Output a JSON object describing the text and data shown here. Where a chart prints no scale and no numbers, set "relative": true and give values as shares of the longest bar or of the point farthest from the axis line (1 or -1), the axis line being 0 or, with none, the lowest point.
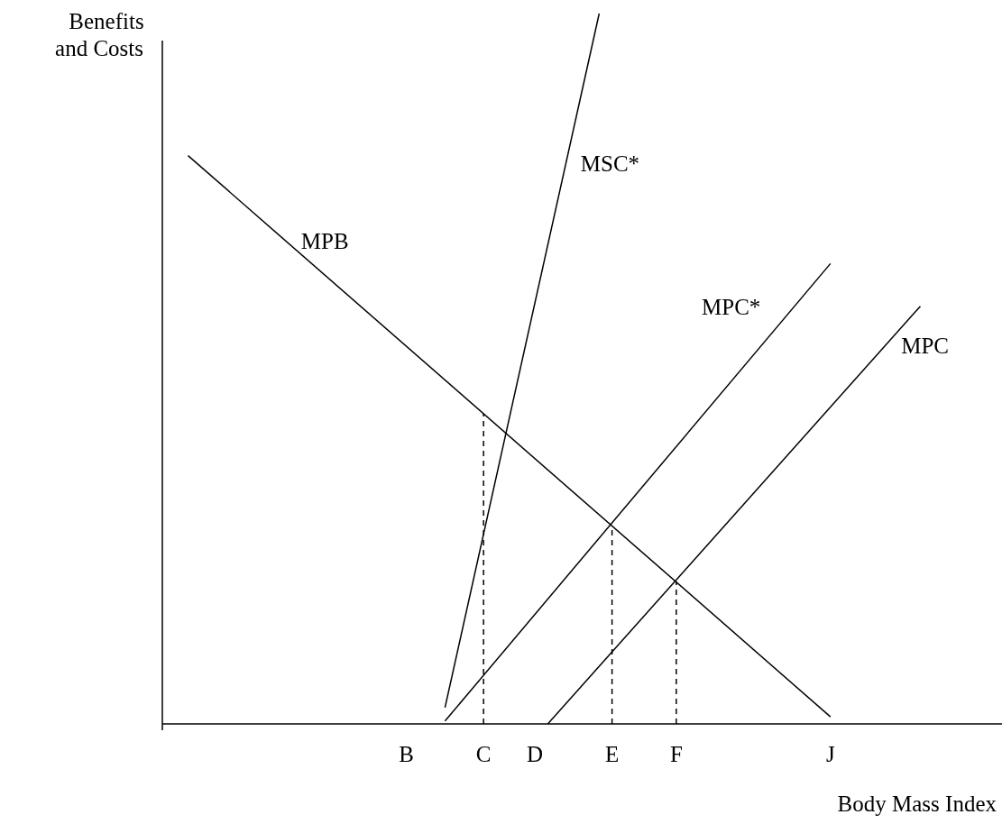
{
  "chart_data": {
    "type": "line",
    "relative": true,
    "xlabel": "Body Mass Index",
    "ylabel": "Benefits and Costs",
    "marker": "none",
    "categories": [
      null,
      null,
      null,
      null,
      null,
      null,
      null,
      null,
      null,
      null,
      null,
      null,
      null,
      null,
      null,
      null,
      null,
      null,
      null,
      "B",
      null,
      null,
      null,
      null,
      null,
      "C",
      null,
      null,
      null,
      "D",
      null,
      null,
      null,
      null,
      null,
      "E",
      null,
      null,
      null,
      null,
      "F",
      null,
      null,
      null,
      null,
      null,
      null,
      null,
      null,
      null,
      null,
      null,
      "J",
      null,
      null,
      null,
      null,
      null,
      null,
      null,
      null,
      null,
      null,
      null,
      null,
      null
    ],
    "series": [
      {
        "name": "MSC*",
        "color": "#000000",
        "values": [
          null,
          null,
          null,
          null,
          null,
          null,
          null,
          null,
          null,
          null,
          null,
          null,
          null,
          null,
          null,
          null,
          null,
          null,
          null,
          null,
          null,
          null,
          0.023,
          null,
          null,
          null,
          null,
          null,
          null,
          null,
          null,
          null,
          null,
          null,
          1.0,
          null,
          null,
          null,
          null,
          null,
          null,
          null,
          null,
          null,
          null,
          null,
          null,
          null,
          null,
          null,
          null,
          null,
          null,
          null,
          null,
          null,
          null,
          null,
          null,
          null,
          null,
          null,
          null,
          null,
          null,
          null
        ]
      },
      {
        "name": "MPB",
        "color": "#000000",
        "values": [
          null,
          null,
          0.8,
          null,
          null,
          null,
          null,
          null,
          null,
          null,
          null,
          null,
          null,
          null,
          null,
          null,
          null,
          null,
          null,
          null,
          null,
          null,
          null,
          null,
          null,
          null,
          null,
          null,
          null,
          null,
          null,
          null,
          null,
          null,
          null,
          null,
          null,
          null,
          null,
          null,
          null,
          null,
          null,
          null,
          null,
          null,
          null,
          null,
          null,
          null,
          null,
          null,
          0.01,
          null,
          null,
          null,
          null,
          null,
          null,
          null,
          null,
          null,
          null,
          null,
          null,
          null
        ]
      },
      {
        "name": "MPC*",
        "color": "#000000",
        "values": [
          null,
          null,
          null,
          null,
          null,
          null,
          null,
          null,
          null,
          null,
          null,
          null,
          null,
          null,
          null,
          null,
          null,
          null,
          null,
          null,
          null,
          null,
          0.004,
          null,
          null,
          null,
          null,
          null,
          null,
          null,
          null,
          null,
          null,
          null,
          null,
          null,
          null,
          null,
          null,
          null,
          null,
          null,
          null,
          null,
          null,
          null,
          null,
          null,
          null,
          null,
          null,
          null,
          0.648,
          null,
          null,
          null,
          null,
          null,
          null,
          null,
          null,
          null,
          null,
          null,
          null,
          null
        ]
      },
      {
        "name": "MPC",
        "color": "#000000",
        "values": [
          null,
          null,
          null,
          null,
          null,
          null,
          null,
          null,
          null,
          null,
          null,
          null,
          null,
          null,
          null,
          null,
          null,
          null,
          null,
          null,
          null,
          null,
          null,
          null,
          null,
          null,
          null,
          null,
          null,
          null,
          0,
          null,
          null,
          null,
          null,
          null,
          null,
          null,
          null,
          null,
          null,
          null,
          null,
          null,
          null,
          null,
          null,
          null,
          null,
          null,
          null,
          null,
          null,
          null,
          null,
          null,
          null,
          null,
          null,
          0.588,
          null,
          null,
          null,
          null,
          null,
          null
        ]
      }
    ],
    "ref_lines": [
      {
        "axis": "x",
        "value": "C",
        "line_style": "dashed",
        "color": "#000000"
      },
      {
        "axis": "x",
        "value": "E",
        "line_style": "dashed",
        "color": "#000000"
      },
      {
        "axis": "x",
        "value": "F",
        "line_style": "dashed",
        "color": "#000000"
      }
    ]
  }
}
